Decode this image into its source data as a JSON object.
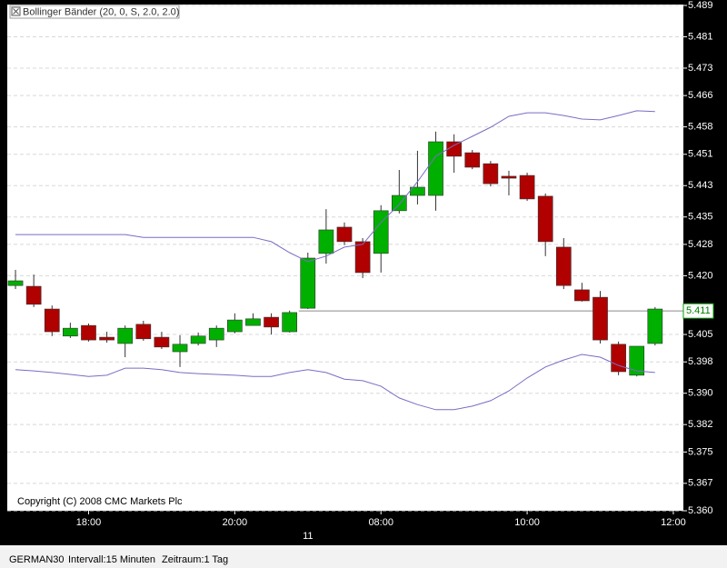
{
  "chart_data": {
    "type": "candlestick",
    "legend": "Bollinger Bänder (20, 0, S, 2.0, 2.0)",
    "copyright": "Copyright (C) 2008 CMC Markets Plc",
    "xlim": [
      -0.45,
      36.55
    ],
    "xticks": [
      {
        "value": 4,
        "label": "18:00"
      },
      {
        "value": 12,
        "label": "20:00"
      },
      {
        "value": 20,
        "label": "08:00"
      },
      {
        "value": 28,
        "label": "10:00"
      },
      {
        "value": 36,
        "label": "12:00"
      }
    ],
    "date_ticks": [
      {
        "value": 16,
        "label": "11"
      }
    ],
    "ylim": [
      5.36,
      5.489
    ],
    "yticks": [
      5.489,
      5.481,
      5.473,
      5.466,
      5.458,
      5.451,
      5.443,
      5.435,
      5.428,
      {
        "value": 5.42,
        "label": "5.420"
      },
      5.405,
      5.398,
      {
        "value": 5.39,
        "label": "5.390"
      },
      5.382,
      5.375,
      5.367,
      {
        "value": 5.36,
        "label": "5.360"
      }
    ],
    "grid": true,
    "up_color": "#00b000",
    "down_color": "#b00000",
    "open": [
      5.4175,
      5.4173,
      5.4115,
      5.4046,
      5.4073,
      5.4043,
      5.4027,
      5.4076,
      5.4043,
      5.4006,
      5.4027,
      5.4036,
      5.4057,
      5.4073,
      5.4094,
      5.4057,
      5.4117,
      5.4257,
      5.4324,
      5.4287,
      5.4257,
      5.4366,
      5.4405,
      5.4405,
      5.4542,
      5.4514,
      5.4486,
      5.4454,
      5.4456,
      5.4403,
      5.4273,
      5.4164,
      5.4145,
      5.4025,
      5.3946,
      5.4027
    ],
    "high": [
      5.4215,
      5.4203,
      5.4124,
      5.408,
      5.4078,
      5.4057,
      5.4073,
      5.4085,
      5.4057,
      5.4048,
      5.4055,
      5.4073,
      5.4104,
      5.4104,
      5.4104,
      5.4111,
      5.4259,
      5.437,
      5.4336,
      5.4296,
      5.438,
      5.447,
      5.4519,
      5.4568,
      5.4561,
      5.4521,
      5.4493,
      5.4468,
      5.4463,
      5.441,
      5.4296,
      5.4182,
      5.4161,
      5.4032,
      5.402,
      5.412
    ],
    "low": [
      5.4166,
      5.412,
      5.4046,
      5.4041,
      5.4032,
      5.4029,
      5.3992,
      5.4034,
      5.4013,
      5.3967,
      5.4022,
      5.4018,
      5.4053,
      5.4073,
      5.405,
      5.4055,
      5.4115,
      5.4231,
      5.4278,
      5.4194,
      5.4208,
      5.4359,
      5.4382,
      5.4366,
      5.4463,
      5.4472,
      5.4428,
      5.4405,
      5.4391,
      5.425,
      5.4166,
      5.4134,
      5.4027,
      5.3946,
      5.3943,
      5.4022
    ],
    "close": [
      5.4187,
      5.4127,
      5.4057,
      5.4066,
      5.4036,
      5.4036,
      5.4066,
      5.4039,
      5.4018,
      5.4025,
      5.4046,
      5.4066,
      5.4087,
      5.409,
      5.4069,
      5.4106,
      5.4245,
      5.4317,
      5.4287,
      5.4208,
      5.4366,
      5.4405,
      5.4426,
      5.4542,
      5.4505,
      5.4477,
      5.4435,
      5.4449,
      5.4396,
      5.4287,
      5.4175,
      5.4136,
      5.4036,
      5.3955,
      5.402,
      5.4115
    ],
    "bands": {
      "color": "#7a6cc4",
      "upper": [
        5.4305,
        5.4305,
        5.4305,
        5.4305,
        5.4305,
        5.4305,
        5.4305,
        5.4298,
        5.4298,
        5.4298,
        5.4298,
        5.4298,
        5.4298,
        5.4298,
        5.4287,
        5.4259,
        5.4236,
        5.425,
        5.4273,
        5.428,
        5.4336,
        5.4382,
        5.444,
        5.4505,
        5.4533,
        5.4556,
        5.4579,
        5.4607,
        5.4616,
        5.4616,
        5.4609,
        5.46,
        5.4598,
        5.4609,
        5.4621,
        5.4619
      ],
      "lower": [
        5.396,
        5.3957,
        5.3953,
        5.3948,
        5.3943,
        5.3946,
        5.3964,
        5.3964,
        5.396,
        5.3953,
        5.395,
        5.3948,
        5.3946,
        5.3943,
        5.3943,
        5.3953,
        5.396,
        5.3953,
        5.3936,
        5.3932,
        5.3918,
        5.3888,
        5.3871,
        5.3858,
        5.3858,
        5.3867,
        5.3881,
        5.3906,
        5.3939,
        5.3967,
        5.3985,
        5.3999,
        5.3992,
        5.3971,
        5.3957,
        5.3953
      ]
    },
    "last_price": 5.411
  },
  "status_bar": {
    "instrument": "GERMAN30",
    "interval": "Intervall:15 Minuten",
    "period": "Zeitraum:1 Tag"
  }
}
